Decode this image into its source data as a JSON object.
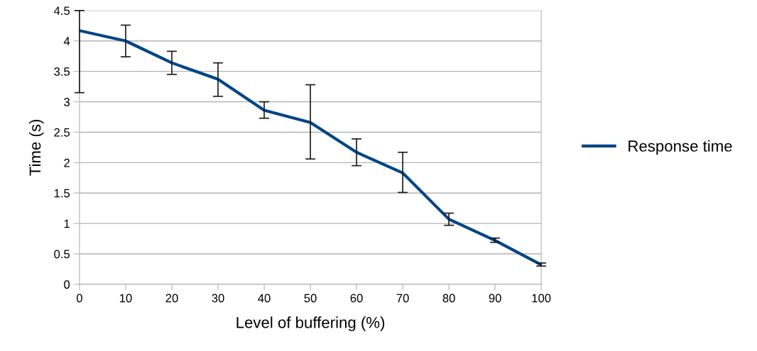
{
  "chart_data": {
    "type": "line",
    "xlabel": "Level of buffering (%)",
    "ylabel": "Time (s)",
    "x": [
      0,
      10,
      20,
      30,
      40,
      50,
      60,
      70,
      80,
      90,
      100
    ],
    "series": [
      {
        "name": "Response time",
        "color": "#004586",
        "values": [
          4.17,
          4.0,
          3.64,
          3.37,
          2.86,
          2.66,
          2.17,
          1.83,
          1.07,
          0.72,
          0.32
        ],
        "errors": [
          [
            3.15,
            4.5
          ],
          [
            3.74,
            4.26
          ],
          [
            3.45,
            3.83
          ],
          [
            3.09,
            3.64
          ],
          [
            2.73,
            3.0
          ],
          [
            2.06,
            3.28
          ],
          [
            1.95,
            2.39
          ],
          [
            1.51,
            2.17
          ],
          [
            0.97,
            1.17
          ],
          [
            0.69,
            0.76
          ],
          [
            0.3,
            0.35
          ]
        ]
      }
    ],
    "xlim": [
      0,
      100
    ],
    "xticks": [
      0,
      10,
      20,
      30,
      40,
      50,
      60,
      70,
      80,
      90,
      100
    ],
    "ylim": [
      0,
      4.5
    ],
    "yticks": [
      0,
      {
        "value": 0.5,
        "label": "0.5"
      },
      1,
      {
        "value": 1.5,
        "label": "1.5"
      },
      2,
      {
        "value": 2.5,
        "label": "2.5"
      },
      3,
      {
        "value": 3.5,
        "label": "3.5"
      },
      4,
      {
        "value": 4.5,
        "label": "4.5"
      }
    ],
    "grid": "y",
    "legend": "right",
    "marker": "none",
    "line_style": "solid"
  }
}
